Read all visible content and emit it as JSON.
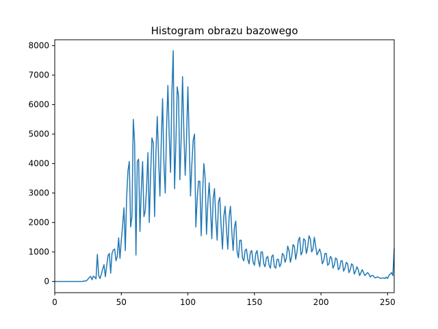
{
  "chart_data": {
    "type": "line",
    "title": "Histogram obrazu bazowego",
    "xlabel": "",
    "ylabel": "",
    "xlim": [
      0,
      255
    ],
    "ylim": [
      -380,
      8200
    ],
    "xticks": [
      0,
      50,
      100,
      150,
      200,
      250
    ],
    "yticks": [
      0,
      1000,
      2000,
      3000,
      4000,
      5000,
      6000,
      7000,
      8000
    ],
    "grid": false,
    "line_color": "#1f77b4",
    "series": [
      {
        "points": [
          [
            0,
            0
          ],
          [
            21,
            0
          ],
          [
            22,
            20
          ],
          [
            23,
            10
          ],
          [
            24,
            30
          ],
          [
            25,
            80
          ],
          [
            26,
            140
          ],
          [
            27,
            170
          ],
          [
            28,
            60
          ],
          [
            29,
            180
          ],
          [
            30,
            150
          ],
          [
            31,
            90
          ],
          [
            32,
            920
          ],
          [
            33,
            200
          ],
          [
            34,
            100
          ],
          [
            35,
            250
          ],
          [
            36,
            420
          ],
          [
            37,
            570
          ],
          [
            38,
            160
          ],
          [
            39,
            520
          ],
          [
            40,
            880
          ],
          [
            41,
            950
          ],
          [
            42,
            280
          ],
          [
            43,
            950
          ],
          [
            44,
            1070
          ],
          [
            45,
            1100
          ],
          [
            46,
            700
          ],
          [
            47,
            860
          ],
          [
            48,
            1480
          ],
          [
            49,
            780
          ],
          [
            50,
            1400
          ],
          [
            51,
            1900
          ],
          [
            52,
            2500
          ],
          [
            53,
            1050
          ],
          [
            54,
            2850
          ],
          [
            55,
            3750
          ],
          [
            56,
            4070
          ],
          [
            57,
            1850
          ],
          [
            58,
            2200
          ],
          [
            59,
            5500
          ],
          [
            60,
            4700
          ],
          [
            61,
            900
          ],
          [
            62,
            4070
          ],
          [
            63,
            4150
          ],
          [
            64,
            1700
          ],
          [
            65,
            3100
          ],
          [
            66,
            4070
          ],
          [
            67,
            2200
          ],
          [
            68,
            2400
          ],
          [
            69,
            3200
          ],
          [
            70,
            4370
          ],
          [
            71,
            2000
          ],
          [
            72,
            3600
          ],
          [
            73,
            4870
          ],
          [
            74,
            4700
          ],
          [
            75,
            2200
          ],
          [
            76,
            4350
          ],
          [
            77,
            5600
          ],
          [
            78,
            4200
          ],
          [
            79,
            2900
          ],
          [
            80,
            4700
          ],
          [
            81,
            6200
          ],
          [
            82,
            4000
          ],
          [
            83,
            3000
          ],
          [
            84,
            5200
          ],
          [
            85,
            6650
          ],
          [
            86,
            4950
          ],
          [
            87,
            3700
          ],
          [
            88,
            6400
          ],
          [
            89,
            7830
          ],
          [
            90,
            3150
          ],
          [
            91,
            4700
          ],
          [
            92,
            6600
          ],
          [
            93,
            6300
          ],
          [
            94,
            3450
          ],
          [
            95,
            4900
          ],
          [
            96,
            6950
          ],
          [
            97,
            5050
          ],
          [
            98,
            3600
          ],
          [
            99,
            4850
          ],
          [
            100,
            6600
          ],
          [
            101,
            4800
          ],
          [
            102,
            2900
          ],
          [
            103,
            4000
          ],
          [
            104,
            4800
          ],
          [
            105,
            5000
          ],
          [
            106,
            1850
          ],
          [
            107,
            2800
          ],
          [
            108,
            3400
          ],
          [
            109,
            3400
          ],
          [
            110,
            1550
          ],
          [
            111,
            2950
          ],
          [
            112,
            4000
          ],
          [
            113,
            3500
          ],
          [
            114,
            1600
          ],
          [
            115,
            2650
          ],
          [
            116,
            3350
          ],
          [
            117,
            2500
          ],
          [
            118,
            1450
          ],
          [
            119,
            2800
          ],
          [
            120,
            3150
          ],
          [
            121,
            2100
          ],
          [
            122,
            1400
          ],
          [
            123,
            2700
          ],
          [
            124,
            2850
          ],
          [
            125,
            1850
          ],
          [
            126,
            1100
          ],
          [
            127,
            2200
          ],
          [
            128,
            2550
          ],
          [
            129,
            1750
          ],
          [
            130,
            1100
          ],
          [
            131,
            2200
          ],
          [
            132,
            2550
          ],
          [
            133,
            1700
          ],
          [
            134,
            1050
          ],
          [
            135,
            1850
          ],
          [
            136,
            2050
          ],
          [
            137,
            1000
          ],
          [
            138,
            800
          ],
          [
            139,
            1400
          ],
          [
            140,
            1400
          ],
          [
            141,
            800
          ],
          [
            142,
            700
          ],
          [
            143,
            1050
          ],
          [
            144,
            1100
          ],
          [
            145,
            750
          ],
          [
            146,
            600
          ],
          [
            147,
            1000
          ],
          [
            148,
            1050
          ],
          [
            149,
            650
          ],
          [
            150,
            550
          ],
          [
            151,
            950
          ],
          [
            152,
            1050
          ],
          [
            153,
            700
          ],
          [
            154,
            500
          ],
          [
            155,
            1000
          ],
          [
            156,
            1000
          ],
          [
            157,
            600
          ],
          [
            158,
            500
          ],
          [
            159,
            800
          ],
          [
            160,
            850
          ],
          [
            161,
            550
          ],
          [
            162,
            450
          ],
          [
            163,
            850
          ],
          [
            164,
            900
          ],
          [
            165,
            500
          ],
          [
            166,
            450
          ],
          [
            167,
            750
          ],
          [
            168,
            750
          ],
          [
            169,
            500
          ],
          [
            170,
            600
          ],
          [
            171,
            950
          ],
          [
            172,
            900
          ],
          [
            173,
            650
          ],
          [
            174,
            800
          ],
          [
            175,
            1200
          ],
          [
            176,
            1050
          ],
          [
            177,
            650
          ],
          [
            178,
            850
          ],
          [
            179,
            1250
          ],
          [
            180,
            1200
          ],
          [
            181,
            750
          ],
          [
            182,
            1000
          ],
          [
            183,
            1400
          ],
          [
            184,
            1500
          ],
          [
            185,
            900
          ],
          [
            186,
            1000
          ],
          [
            187,
            1450
          ],
          [
            188,
            1400
          ],
          [
            189,
            950
          ],
          [
            190,
            1150
          ],
          [
            191,
            1550
          ],
          [
            192,
            1450
          ],
          [
            193,
            1000
          ],
          [
            194,
            1100
          ],
          [
            195,
            1500
          ],
          [
            196,
            1200
          ],
          [
            197,
            900
          ],
          [
            198,
            1000
          ],
          [
            199,
            1100
          ],
          [
            200,
            950
          ],
          [
            201,
            600
          ],
          [
            202,
            700
          ],
          [
            203,
            950
          ],
          [
            204,
            950
          ],
          [
            205,
            550
          ],
          [
            206,
            600
          ],
          [
            207,
            850
          ],
          [
            208,
            800
          ],
          [
            209,
            450
          ],
          [
            210,
            550
          ],
          [
            211,
            800
          ],
          [
            212,
            750
          ],
          [
            213,
            400
          ],
          [
            214,
            450
          ],
          [
            215,
            700
          ],
          [
            216,
            700
          ],
          [
            217,
            350
          ],
          [
            218,
            450
          ],
          [
            219,
            650
          ],
          [
            220,
            600
          ],
          [
            221,
            300
          ],
          [
            222,
            400
          ],
          [
            223,
            600
          ],
          [
            224,
            550
          ],
          [
            225,
            250
          ],
          [
            226,
            350
          ],
          [
            227,
            500
          ],
          [
            228,
            400
          ],
          [
            229,
            200
          ],
          [
            230,
            300
          ],
          [
            231,
            400
          ],
          [
            232,
            300
          ],
          [
            233,
            200
          ],
          [
            234,
            250
          ],
          [
            235,
            300
          ],
          [
            236,
            250
          ],
          [
            237,
            150
          ],
          [
            238,
            200
          ],
          [
            239,
            200
          ],
          [
            240,
            150
          ],
          [
            241,
            120
          ],
          [
            242,
            150
          ],
          [
            243,
            150
          ],
          [
            244,
            120
          ],
          [
            245,
            100
          ],
          [
            246,
            120
          ],
          [
            247,
            120
          ],
          [
            248,
            100
          ],
          [
            249,
            150
          ],
          [
            250,
            100
          ],
          [
            251,
            200
          ],
          [
            252,
            250
          ],
          [
            253,
            300
          ],
          [
            254,
            200
          ],
          [
            255,
            1120
          ]
        ]
      }
    ]
  }
}
